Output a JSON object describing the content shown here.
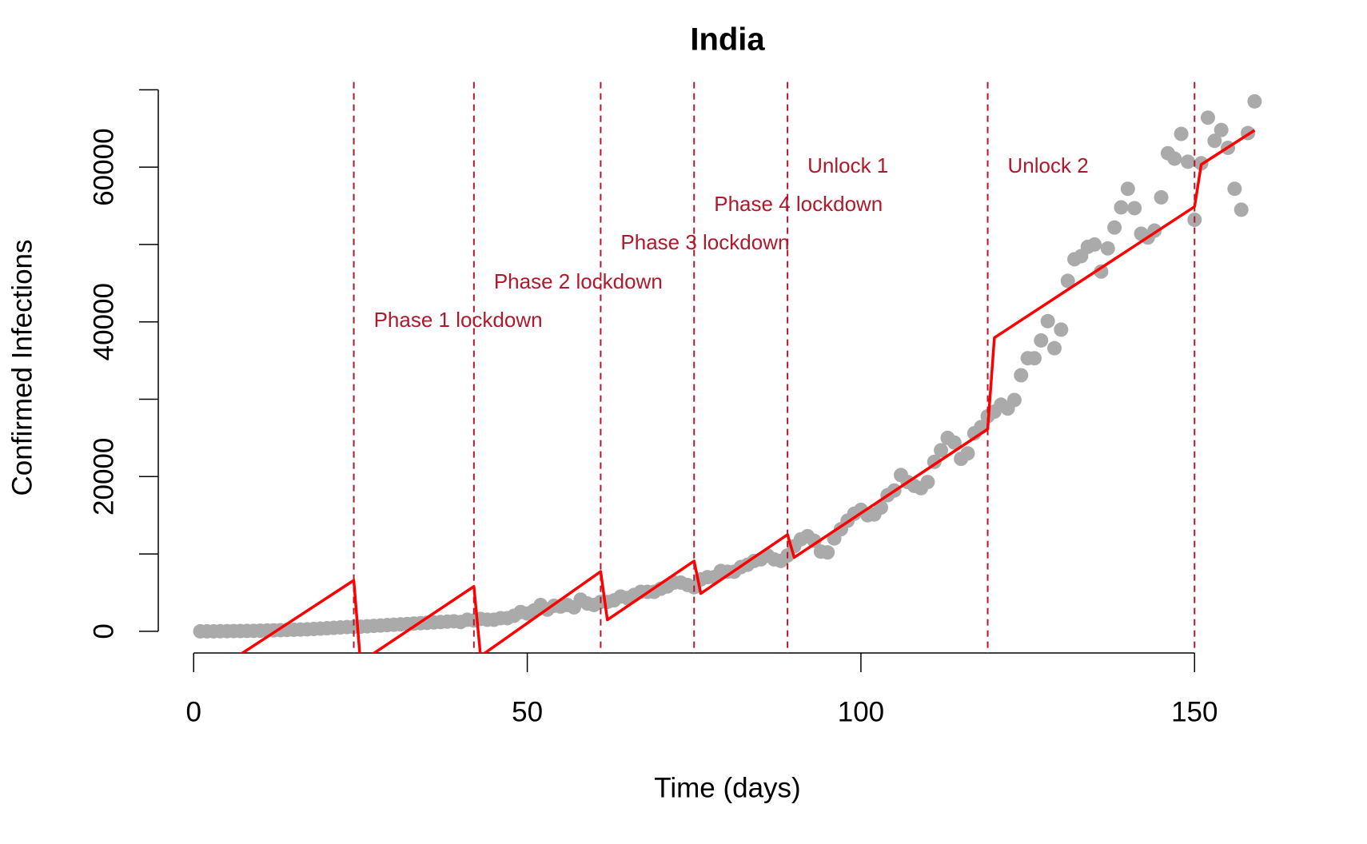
{
  "chart_data": {
    "type": "scatter_line",
    "title": "India",
    "xlabel": "Time (days)",
    "ylabel": "Confirmed Infections",
    "xlim": [
      -5.3,
      165.3
    ],
    "ylim": [
      -2800,
      70800
    ],
    "xticks": [
      0,
      50,
      100,
      150
    ],
    "yticks": [
      0,
      20000,
      40000,
      60000
    ],
    "yticks_minor": [
      10000,
      30000,
      50000,
      70000
    ],
    "points": {
      "color": "#aaaaaa",
      "x": [
        1,
        2,
        3,
        4,
        5,
        6,
        7,
        8,
        9,
        10,
        11,
        12,
        13,
        14,
        15,
        16,
        17,
        18,
        19,
        20,
        21,
        22,
        23,
        24,
        25,
        26,
        27,
        28,
        29,
        30,
        31,
        32,
        33,
        34,
        35,
        36,
        37,
        38,
        39,
        40,
        41,
        42,
        43,
        44,
        45,
        46,
        47,
        48,
        49,
        50,
        51,
        52,
        53,
        54,
        55,
        56,
        57,
        58,
        59,
        60,
        61,
        62,
        63,
        64,
        65,
        66,
        67,
        68,
        69,
        70,
        71,
        72,
        73,
        74,
        75,
        76,
        77,
        78,
        79,
        80,
        81,
        82,
        83,
        84,
        85,
        86,
        87,
        88,
        89,
        90,
        91,
        92,
        93,
        94,
        95,
        96,
        97,
        98,
        99,
        100,
        101,
        102,
        103,
        104,
        105,
        106,
        107,
        108,
        109,
        110,
        111,
        112,
        113,
        114,
        115,
        116,
        117,
        118,
        119,
        120,
        121,
        122,
        123,
        124,
        125,
        126,
        127,
        128,
        129,
        130,
        131,
        132,
        133,
        134,
        135,
        136,
        137,
        138,
        139,
        140,
        141,
        142,
        143,
        144,
        145,
        146,
        147,
        148,
        149,
        150,
        151,
        152,
        153,
        154,
        155,
        156,
        157,
        158,
        159
      ],
      "values": [
        0,
        0,
        0,
        10,
        20,
        30,
        40,
        50,
        60,
        80,
        100,
        120,
        150,
        180,
        200,
        230,
        260,
        300,
        350,
        400,
        450,
        500,
        550,
        580,
        600,
        650,
        700,
        750,
        800,
        850,
        900,
        950,
        1000,
        1050,
        1100,
        1150,
        1200,
        1250,
        1300,
        1200,
        1500,
        1400,
        1600,
        1500,
        1500,
        1700,
        1700,
        2000,
        2500,
        2300,
        2700,
        3400,
        2800,
        3300,
        3200,
        3400,
        3100,
        4100,
        3600,
        3400,
        3800,
        3800,
        4000,
        4500,
        4300,
        4700,
        5100,
        5100,
        5100,
        5500,
        5800,
        6300,
        6300,
        6000,
        5700,
        6700,
        7000,
        7000,
        7800,
        7700,
        7700,
        8300,
        8600,
        9100,
        9300,
        9800,
        9300,
        9100,
        9800,
        11000,
        11900,
        12300,
        11700,
        10300,
        10200,
        12000,
        13200,
        14300,
        15200,
        15700,
        15000,
        15100,
        16000,
        17600,
        18200,
        20200,
        19300,
        18800,
        18500,
        19300,
        21900,
        23400,
        25000,
        24400,
        22300,
        23000,
        25600,
        26400,
        27800,
        28400,
        29300,
        28800,
        29900,
        33100,
        35300,
        35300,
        37600,
        40100,
        36600,
        39000,
        45300,
        48100,
        48500,
        49700,
        50000,
        46500,
        49500,
        52200,
        54800,
        57200,
        54700,
        51400,
        50900,
        51800,
        56100,
        61800,
        61100,
        64300,
        60700,
        53200,
        60500,
        66400,
        63400,
        64800,
        62500,
        57200,
        54500,
        64400,
        68500
      ]
    },
    "fit": {
      "color": "#ff0000",
      "x": [
        1,
        24,
        25,
        42,
        43,
        61,
        62,
        75,
        76,
        89,
        90,
        119,
        120,
        150,
        151,
        159
      ],
      "values": [
        -6360,
        6590,
        -3990,
        5800,
        -3200,
        7730,
        1480,
        9090,
        4890,
        12500,
        9550,
        26140,
        37950,
        54890,
        60340,
        64770
      ]
    },
    "vlines": [
      24,
      42,
      61,
      75,
      89,
      119,
      150
    ],
    "vline_color": "#b2182b",
    "annotations": [
      "Phase 1 lockdown",
      "Phase 2 lockdown",
      "Phase 3 lockdown",
      "Phase 4 lockdown",
      "Unlock 1",
      "Unlock 2"
    ]
  }
}
